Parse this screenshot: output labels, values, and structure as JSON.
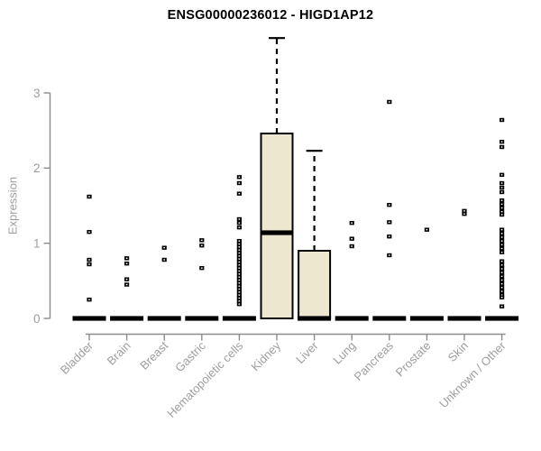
{
  "chart_data": {
    "type": "boxplot",
    "title": "ENSG00000236012 - HIGD1AP12",
    "ylabel": "Expression",
    "xlabel": "",
    "ylim": [
      0,
      3
    ],
    "yticks": [
      0,
      1,
      2,
      3
    ],
    "grid": false,
    "legend": "none",
    "categories": [
      "Bladder",
      "Brain",
      "Breast",
      "Gastric",
      "Hematopoietic cells",
      "Kidney",
      "Liver",
      "Lung",
      "Pancreas",
      "Prostate",
      "Skin",
      "Unknown / Other"
    ],
    "boxes": [
      {
        "category": "Bladder",
        "q1": 0,
        "median": 0,
        "q3": 0,
        "whisker_low": 0,
        "whisker_high": 0,
        "outliers": [
          1.62,
          1.15,
          0.78,
          0.72,
          0.25
        ]
      },
      {
        "category": "Brain",
        "q1": 0,
        "median": 0,
        "q3": 0,
        "whisker_low": 0,
        "whisker_high": 0,
        "outliers": [
          0.8,
          0.73,
          0.52,
          0.45
        ]
      },
      {
        "category": "Breast",
        "q1": 0,
        "median": 0,
        "q3": 0,
        "whisker_low": 0,
        "whisker_high": 0,
        "outliers": [
          0.94,
          0.78
        ]
      },
      {
        "category": "Gastric",
        "q1": 0,
        "median": 0,
        "q3": 0,
        "whisker_low": 0,
        "whisker_high": 0,
        "outliers": [
          1.04,
          0.97,
          0.67
        ]
      },
      {
        "category": "Hematopoietic cells",
        "q1": 0,
        "median": 0,
        "q3": 0,
        "whisker_low": 0,
        "whisker_high": 0,
        "outliers": [
          1.88,
          1.8,
          1.66,
          1.32,
          1.27,
          1.21,
          1.03,
          0.99,
          0.95,
          0.91,
          0.87,
          0.83,
          0.79,
          0.75,
          0.71,
          0.67,
          0.63,
          0.59,
          0.55,
          0.51,
          0.47,
          0.43,
          0.39,
          0.35,
          0.31,
          0.27,
          0.23,
          0.19
        ]
      },
      {
        "category": "Kidney",
        "q1": 0,
        "median": 1.14,
        "q3": 2.46,
        "whisker_low": 0,
        "whisker_high": 3.73,
        "outliers": []
      },
      {
        "category": "Liver",
        "q1": 0,
        "median": 0,
        "q3": 0.9,
        "whisker_low": 0,
        "whisker_high": 2.23,
        "outliers": []
      },
      {
        "category": "Lung",
        "q1": 0,
        "median": 0,
        "q3": 0,
        "whisker_low": 0,
        "whisker_high": 0,
        "outliers": [
          1.27,
          1.06,
          0.96
        ]
      },
      {
        "category": "Pancreas",
        "q1": 0,
        "median": 0,
        "q3": 0,
        "whisker_low": 0,
        "whisker_high": 0,
        "outliers": [
          2.88,
          1.51,
          1.28,
          1.09,
          0.84
        ]
      },
      {
        "category": "Prostate",
        "q1": 0,
        "median": 0,
        "q3": 0,
        "whisker_low": 0,
        "whisker_high": 0,
        "outliers": [
          1.18
        ]
      },
      {
        "category": "Skin",
        "q1": 0,
        "median": 0,
        "q3": 0,
        "whisker_low": 0,
        "whisker_high": 0,
        "outliers": [
          1.43,
          1.39
        ]
      },
      {
        "category": "Unknown / Other",
        "q1": 0,
        "median": 0,
        "q3": 0,
        "whisker_low": 0,
        "whisker_high": 0,
        "outliers": [
          2.64,
          2.35,
          2.28,
          1.91,
          1.8,
          1.74,
          1.68,
          1.57,
          1.52,
          1.47,
          1.42,
          1.38,
          1.18,
          1.13,
          1.08,
          1.03,
          0.98,
          0.93,
          0.88,
          0.76,
          0.71,
          0.66,
          0.61,
          0.56,
          0.51,
          0.46,
          0.41,
          0.36,
          0.31,
          0.28,
          0.16
        ]
      }
    ],
    "colors": {
      "box_fill": "#EDE7D0",
      "box_stroke": "#000000",
      "median": "#000000",
      "whisker": "#000000",
      "outlier": "#000000",
      "axis": "#8c8c8c",
      "tick_label": "#9e9e9e",
      "title": "#000000"
    }
  }
}
